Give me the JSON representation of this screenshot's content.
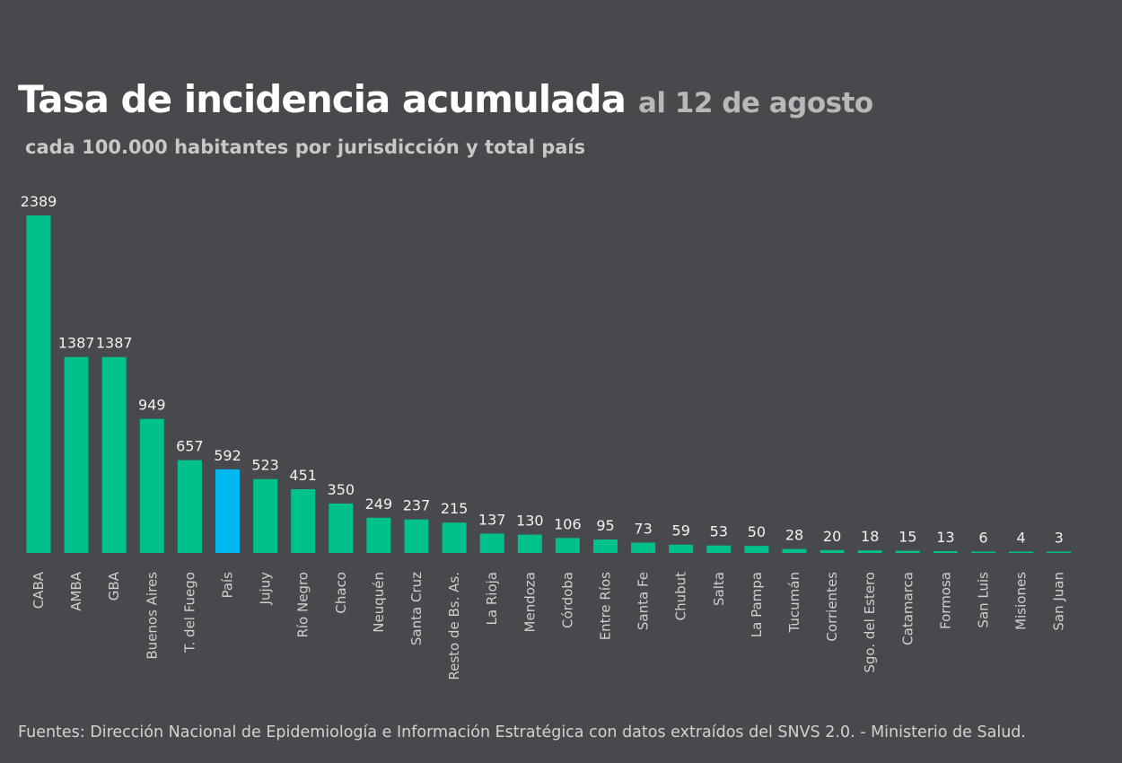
{
  "title": "Tasa de incidencia acumulada",
  "date_label": "al 12 de agosto",
  "subtitle": "cada 100.000 habitantes por jurisdicción y total país",
  "source": "Fuentes: Dirección Nacional de Epidemiología e Información Estratégica con datos extraídos del SNVS 2.0. - Ministerio de Salud.",
  "colors": {
    "background": "#48494d",
    "bar": "#00c08b",
    "highlight": "#00b8f0"
  },
  "chart_data": {
    "type": "bar",
    "title": "Tasa de incidencia acumulada",
    "xlabel": "",
    "ylabel": "",
    "ylim": [
      0,
      2389
    ],
    "grid": false,
    "highlight_category": "País",
    "categories": [
      "CABA",
      "AMBA",
      "GBA",
      "Buenos Aires",
      "T. del Fuego",
      "País",
      "Jujuy",
      "Río Negro",
      "Chaco",
      "Neuquén",
      "Santa Cruz",
      "Resto de Bs. As.",
      "La Rioja",
      "Mendoza",
      "Córdoba",
      "Entre Ríos",
      "Santa Fe",
      "Chubut",
      "Salta",
      "La Pampa",
      "Tucumán",
      "Corrientes",
      "Sgo. del Estero",
      "Catamarca",
      "Formosa",
      "San Luis",
      "Misiones",
      "San Juan"
    ],
    "values": [
      2389,
      1387,
      1387,
      949,
      657,
      592,
      523,
      451,
      350,
      249,
      237,
      215,
      137,
      130,
      106,
      95,
      73,
      59,
      53,
      50,
      28,
      20,
      18,
      15,
      13,
      6,
      4,
      3
    ]
  }
}
